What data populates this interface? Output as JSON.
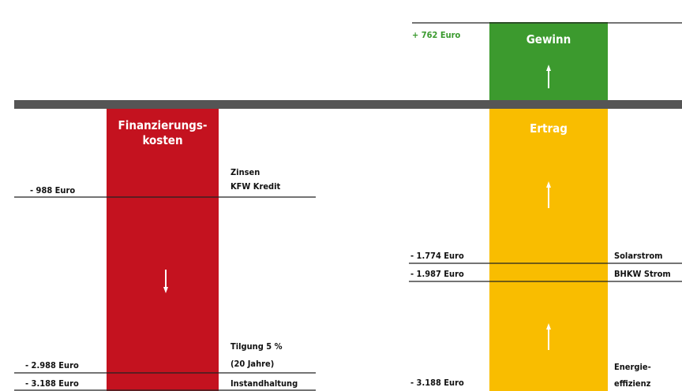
{
  "gain": {
    "amount": "+ 762 Euro",
    "title": "Gewinn"
  },
  "costs": {
    "title": [
      "Finanzierungs-",
      "kosten"
    ],
    "levels": [
      {
        "amount": "- 988 Euro",
        "label": [
          "Zinsen",
          "KFW Kredit"
        ]
      },
      {
        "amount": "- 2.988 Euro",
        "label": [
          "Tilgung 5 %",
          "(20 Jahre)"
        ]
      },
      {
        "amount": "- 3.188 Euro",
        "label": [
          "Instandhaltung"
        ]
      }
    ]
  },
  "revenue": {
    "title": "Ertrag",
    "levels": [
      {
        "amount": "- 1.774 Euro",
        "label": [
          "Solarstrom"
        ]
      },
      {
        "amount": "- 1.987 Euro",
        "label": [
          "BHKW Strom"
        ]
      },
      {
        "amount": "- 3.188 Euro",
        "label": [
          "Energie-",
          "effizienz"
        ]
      }
    ]
  }
}
